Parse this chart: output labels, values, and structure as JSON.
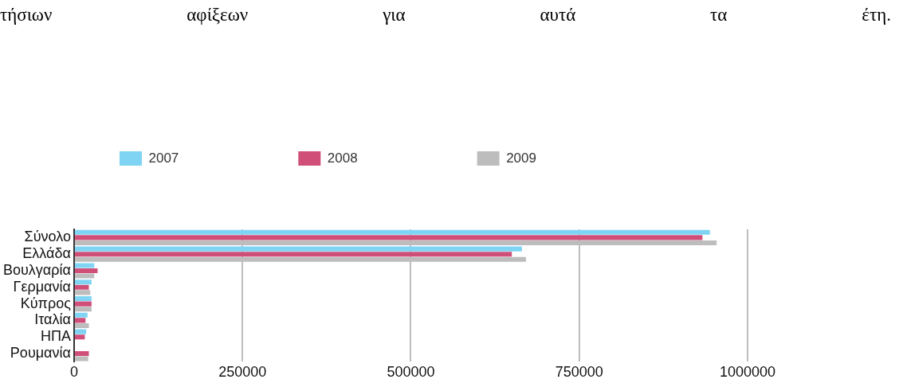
{
  "chart_data": {
    "type": "bar",
    "orientation": "horizontal",
    "title": "τήσιων αφίξεων για αυτά τα έτη.",
    "categories": [
      "Σύνολο",
      "Ελλάδα",
      "Βουλγαρία",
      "Γερμανία",
      "Κύπρος",
      "Ιταλία",
      "ΗΠΑ",
      "Ρουμανία"
    ],
    "series": [
      {
        "name": "2007",
        "color": "#7fd4f3",
        "values": [
          944000,
          665000,
          30000,
          26000,
          26000,
          20000,
          18000,
          null
        ]
      },
      {
        "name": "2008",
        "color": "#d04f78",
        "values": [
          933000,
          650000,
          35000,
          22000,
          26000,
          17000,
          16000,
          22000
        ]
      },
      {
        "name": "2009",
        "color": "#bdbdbd",
        "values": [
          954000,
          671000,
          30000,
          24000,
          26000,
          22000,
          null,
          21000
        ]
      }
    ],
    "xlim": [
      0,
      1000000
    ],
    "xticks": [
      0,
      250000,
      500000,
      750000,
      1000000
    ],
    "grid": "x",
    "legend": "top"
  }
}
